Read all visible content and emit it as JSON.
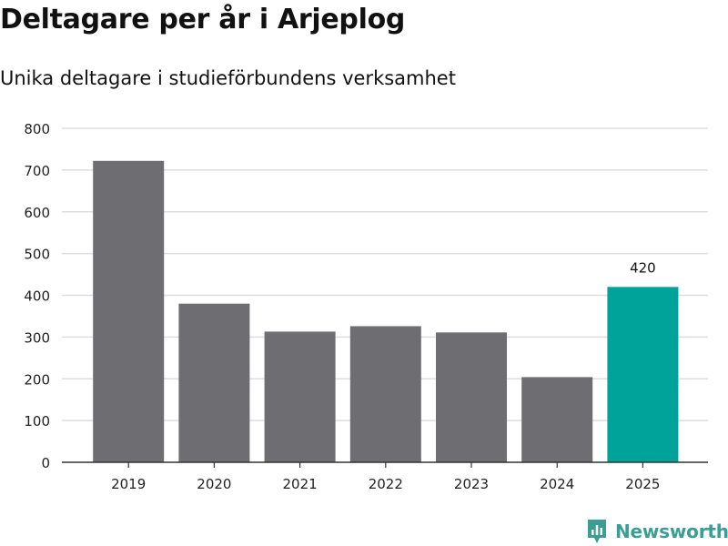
{
  "chart_data": {
    "type": "bar",
    "title": "Deltagare per år i Arjeplog",
    "subtitle": "Unika deltagare i studieförbundens verksamhet",
    "xlabel": "",
    "ylabel": "",
    "categories": [
      "2019",
      "2020",
      "2021",
      "2022",
      "2023",
      "2024",
      "2025"
    ],
    "values": [
      722,
      380,
      313,
      326,
      311,
      204,
      420
    ],
    "highlight_index": 6,
    "data_labels": {
      "6": "420"
    },
    "ylim": [
      0,
      800
    ],
    "yticks": [
      0,
      100,
      200,
      300,
      400,
      500,
      600,
      700,
      800
    ],
    "grid": true,
    "colors": {
      "bar": "#6e6d72",
      "highlight": "#00a39a",
      "grid": "#dddddd",
      "axis": "#333333"
    }
  },
  "brand": {
    "name": "Newsworthy",
    "icon": "newsworthy-logo-icon",
    "color": "#3b9e94"
  }
}
